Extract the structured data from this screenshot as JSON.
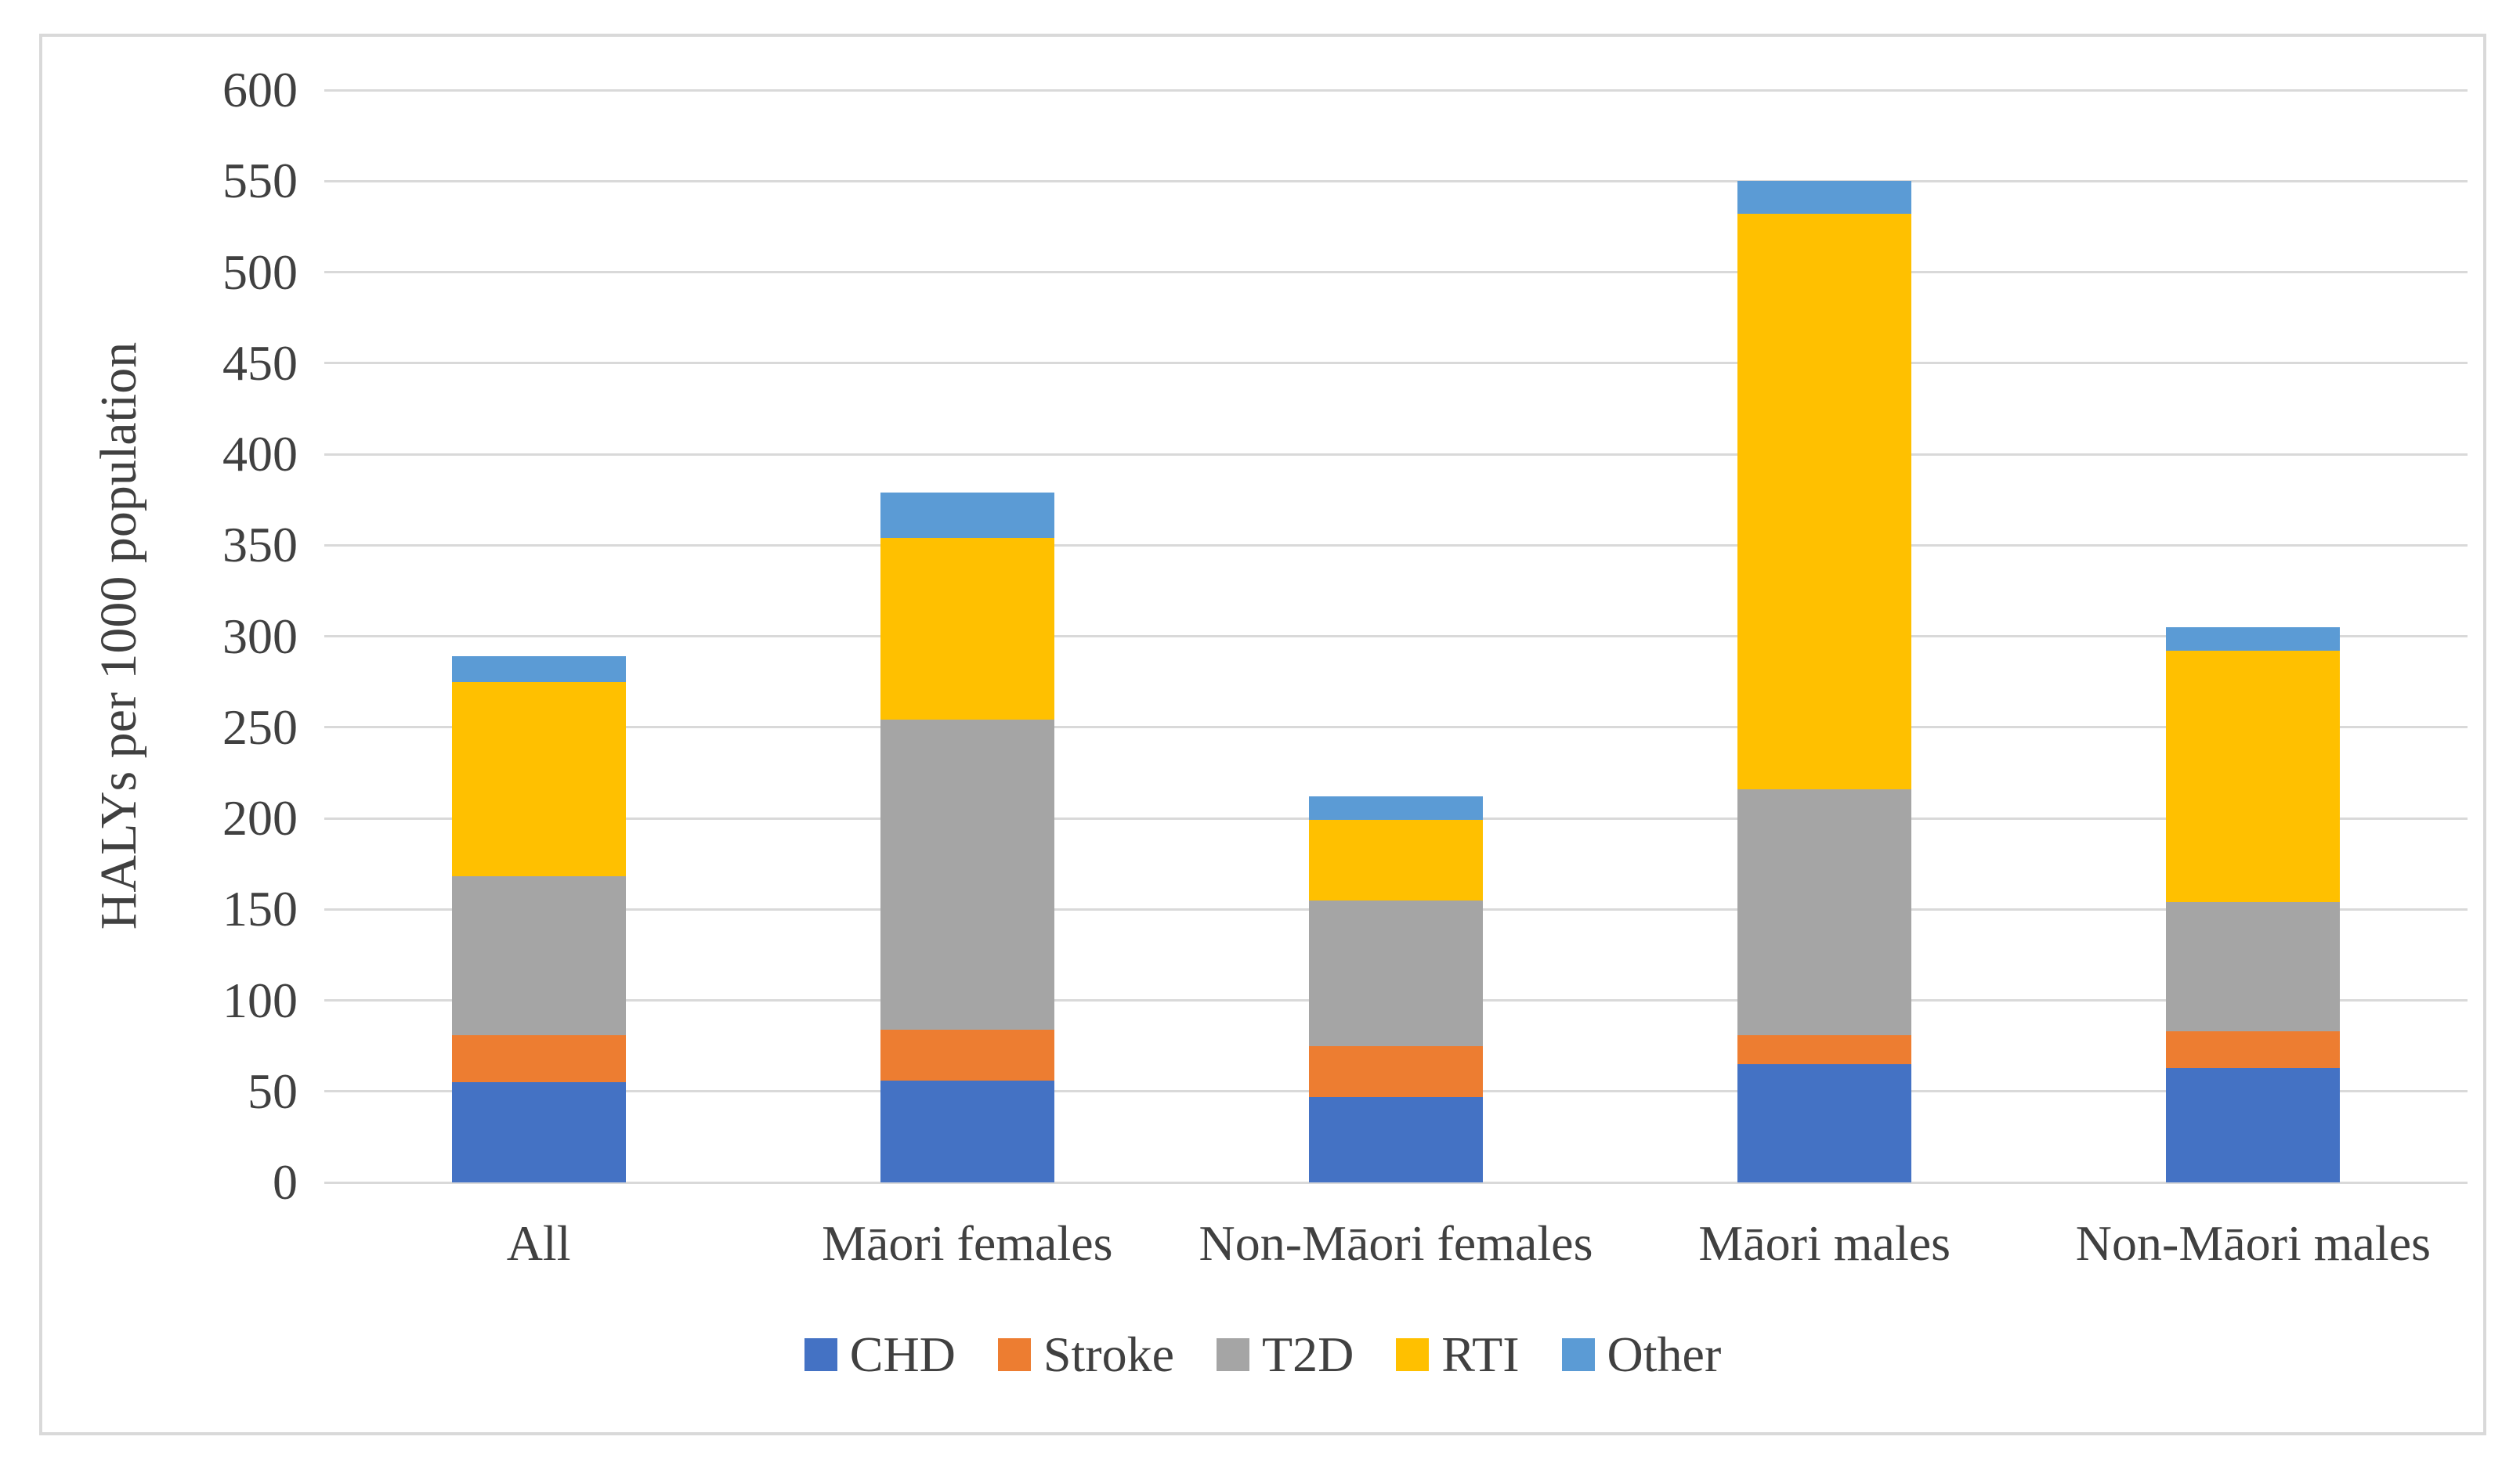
{
  "style": {
    "text_color": "#404040",
    "gridline_color": "#D9D9D9",
    "frame_border_color": "#D9D9D9",
    "background_color": "#FFFFFF"
  },
  "chart_data": {
    "type": "bar",
    "stacked": true,
    "title": "",
    "xlabel": "",
    "ylabel": "HALYs per 1000 population",
    "ylim": [
      0,
      600
    ],
    "yticks": [
      0,
      50,
      100,
      150,
      200,
      250,
      300,
      350,
      400,
      450,
      500,
      550,
      600
    ],
    "grid": "horizontal",
    "legend_position": "bottom",
    "categories": [
      "All",
      "Māori females",
      "Non-Māori females",
      "Māori males",
      "Non-Māori males"
    ],
    "series": [
      {
        "name": "CHD",
        "color": "#4472C4",
        "values": [
          55,
          56,
          47,
          65,
          63
        ]
      },
      {
        "name": "Stroke",
        "color": "#ED7D31",
        "values": [
          26,
          28,
          28,
          16,
          20
        ]
      },
      {
        "name": "T2D",
        "color": "#A5A5A5",
        "values": [
          87,
          170,
          80,
          135,
          71
        ]
      },
      {
        "name": "RTI",
        "color": "#FFC000",
        "values": [
          107,
          100,
          44,
          316,
          138
        ]
      },
      {
        "name": "Other",
        "color": "#5B9BD5",
        "values": [
          14,
          25,
          13,
          18,
          13
        ]
      }
    ]
  }
}
